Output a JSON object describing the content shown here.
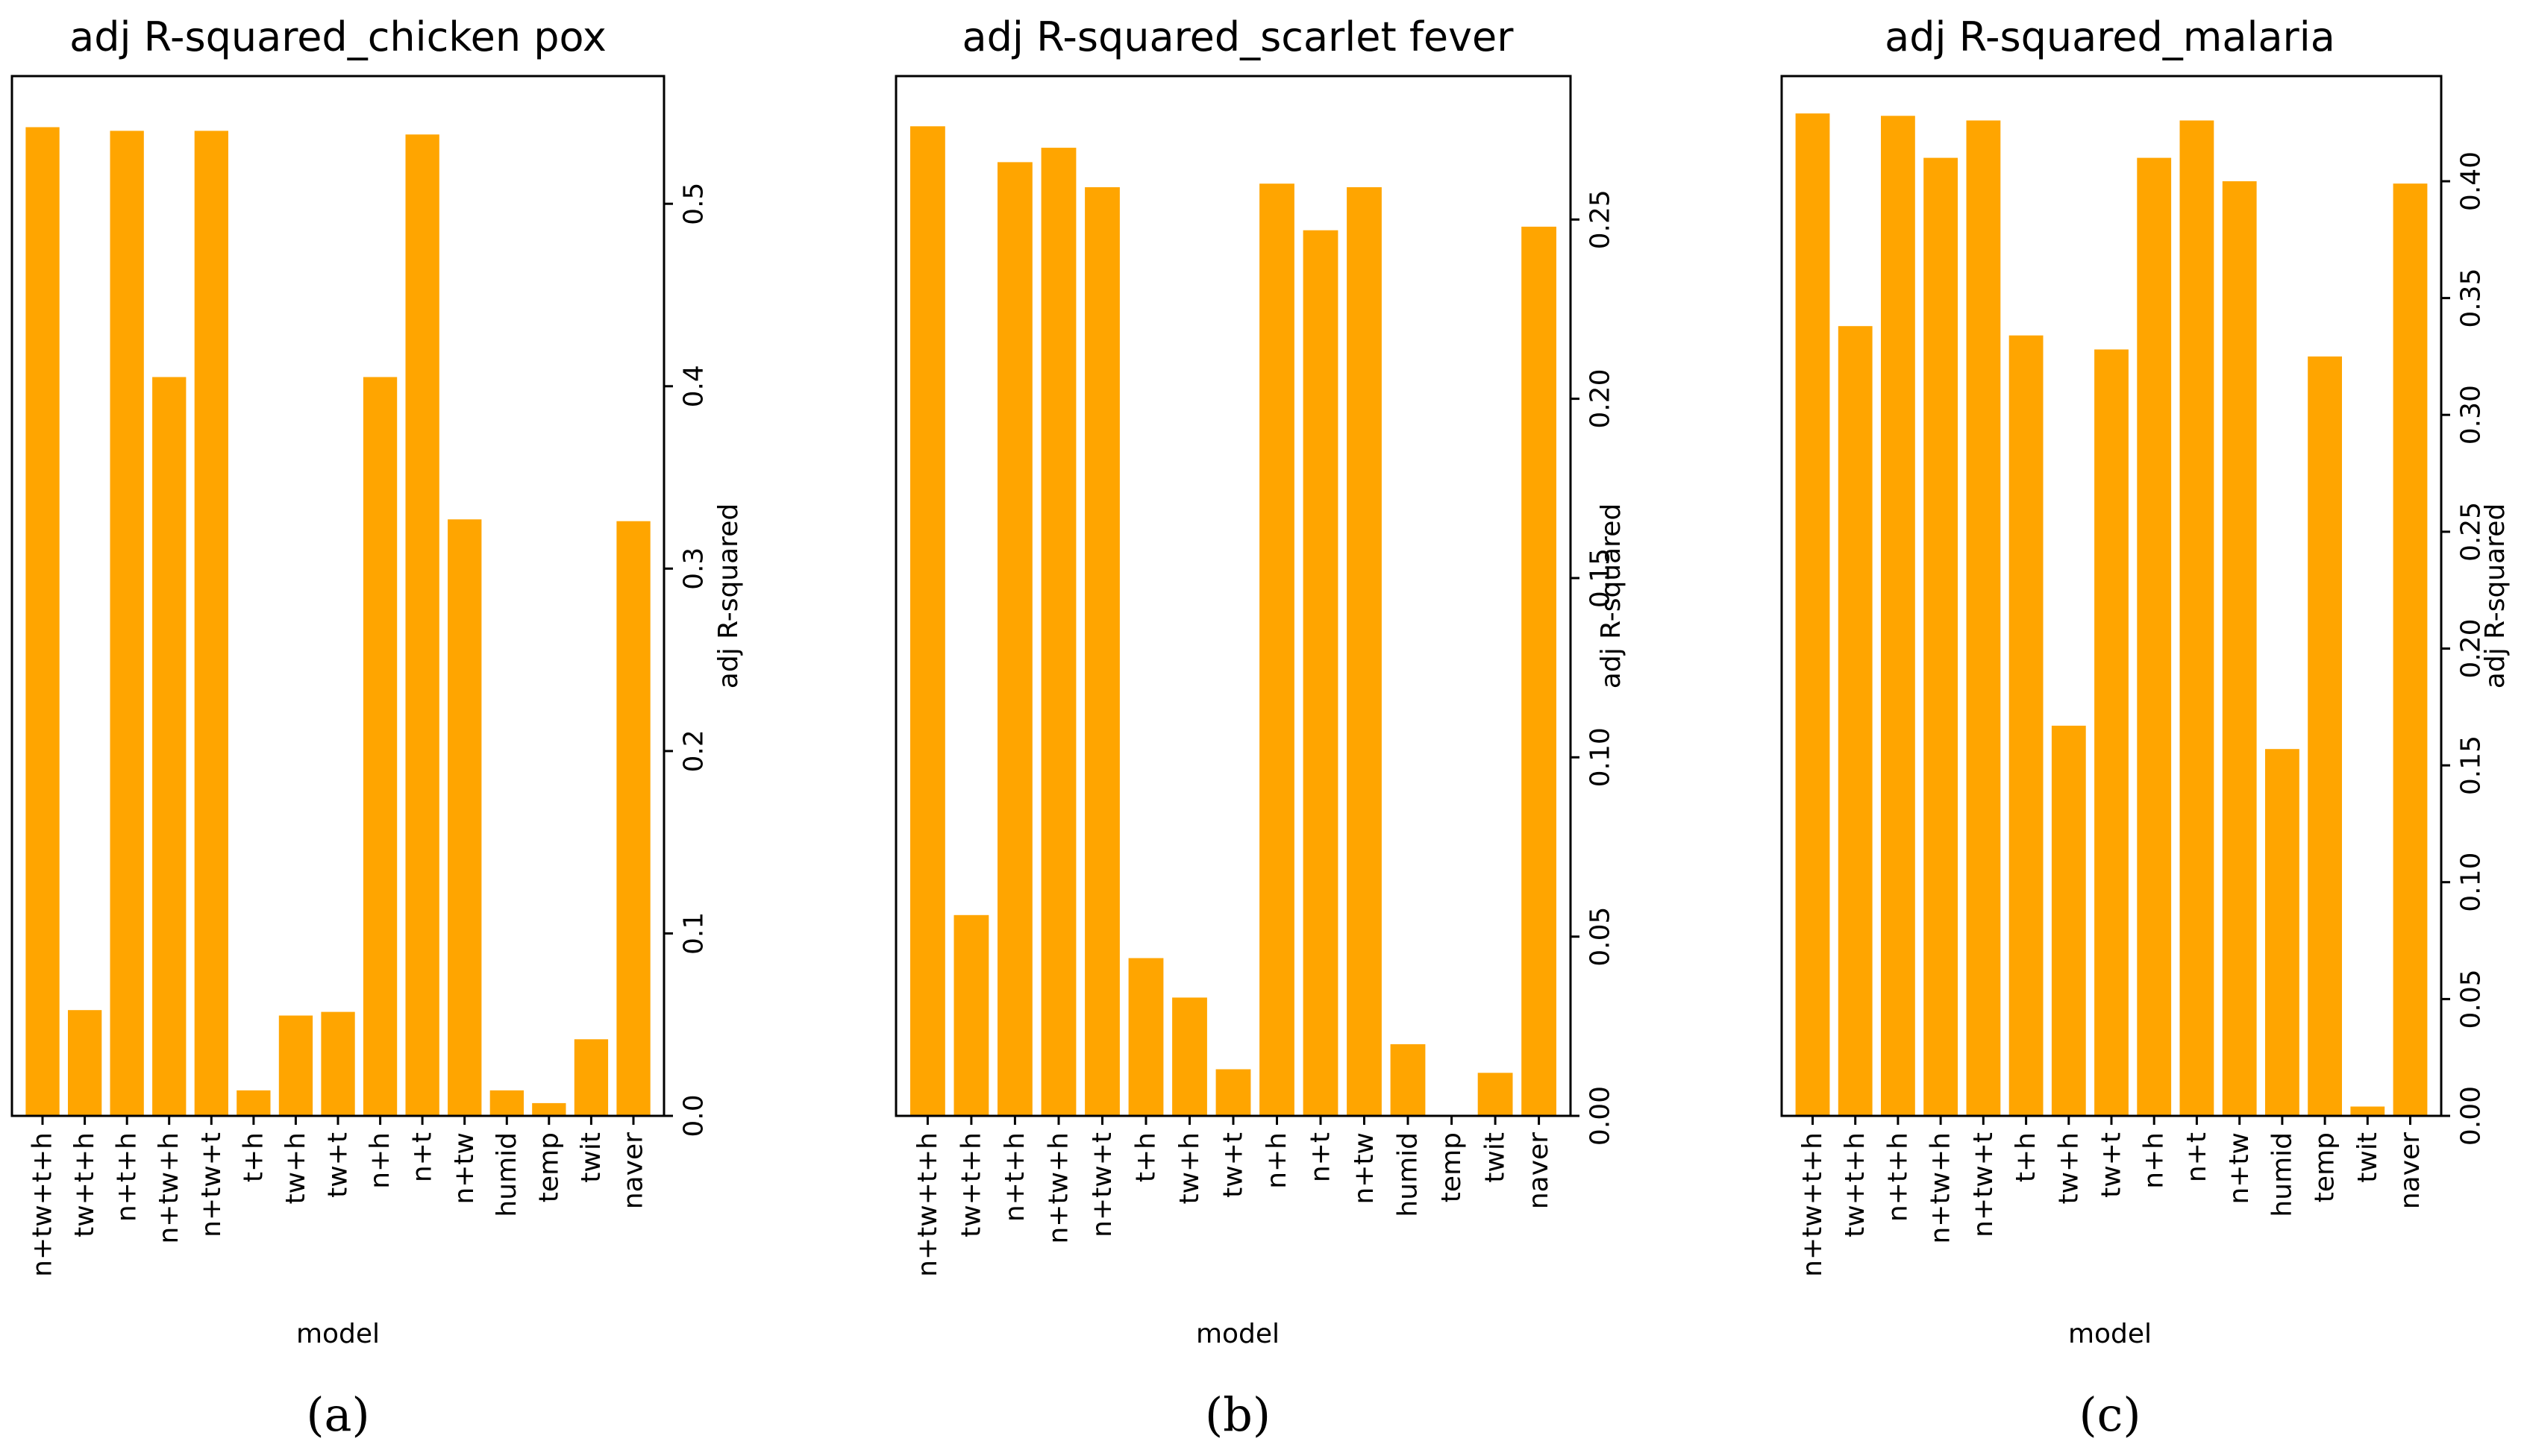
{
  "figure": {
    "bar_color": "#FFA500",
    "axis_color": "#000000"
  },
  "chart_data": [
    {
      "type": "bar",
      "panel_label": "(a)",
      "title": "adj R-squared_chicken pox",
      "xlabel": "model",
      "ylabel": "adj R-squared",
      "yaxis_side": "right",
      "ylim": [
        0,
        0.57
      ],
      "yticks": [
        0.0,
        0.1,
        0.2,
        0.3,
        0.4,
        0.5
      ],
      "ytick_labels": [
        "0.0",
        "0.1",
        "0.2",
        "0.3",
        "0.4",
        "0.5"
      ],
      "categories": [
        "n+tw+t+h",
        "tw+t+h",
        "n+t+h",
        "n+tw+h",
        "n+tw+t",
        "t+h",
        "tw+h",
        "tw+t",
        "n+h",
        "n+t",
        "n+tw",
        "humid",
        "temp",
        "twit",
        "naver"
      ],
      "values": [
        0.542,
        0.058,
        0.54,
        0.405,
        0.54,
        0.014,
        0.055,
        0.057,
        0.405,
        0.538,
        0.327,
        0.014,
        0.007,
        0.042,
        0.326
      ]
    },
    {
      "type": "bar",
      "panel_label": "(b)",
      "title": "adj R-squared_scarlet fever",
      "xlabel": "model",
      "ylabel": "adj R-squared",
      "yaxis_side": "right",
      "ylim": [
        0,
        0.29
      ],
      "yticks": [
        0.0,
        0.05,
        0.1,
        0.15,
        0.2,
        0.25
      ],
      "ytick_labels": [
        "0.00",
        "0.05",
        "0.10",
        "0.15",
        "0.20",
        "0.25"
      ],
      "categories": [
        "n+tw+t+h",
        "tw+t+h",
        "n+t+h",
        "n+tw+h",
        "n+tw+t",
        "t+h",
        "tw+h",
        "tw+t",
        "n+h",
        "n+t",
        "n+tw",
        "humid",
        "temp",
        "twit",
        "naver"
      ],
      "values": [
        0.276,
        0.056,
        0.266,
        0.27,
        0.259,
        0.044,
        0.033,
        0.013,
        0.26,
        0.247,
        0.259,
        0.02,
        0.0,
        0.012,
        0.248
      ]
    },
    {
      "type": "bar",
      "panel_label": "(c)",
      "title": "adj R-squared_malaria",
      "xlabel": "model",
      "ylabel": "adj R-squared",
      "yaxis_side": "right",
      "ylim": [
        0,
        0.445
      ],
      "yticks": [
        0.0,
        0.05,
        0.1,
        0.15,
        0.2,
        0.25,
        0.3,
        0.35,
        0.4
      ],
      "ytick_labels": [
        "0.00",
        "0.05",
        "0.10",
        "0.15",
        "0.20",
        "0.25",
        "0.30",
        "0.35",
        "0.40"
      ],
      "categories": [
        "n+tw+t+h",
        "tw+t+h",
        "n+t+h",
        "n+tw+h",
        "n+tw+t",
        "t+h",
        "tw+h",
        "tw+t",
        "n+h",
        "n+t",
        "n+tw",
        "humid",
        "temp",
        "twit",
        "naver"
      ],
      "values": [
        0.429,
        0.338,
        0.428,
        0.41,
        0.426,
        0.334,
        0.167,
        0.328,
        0.41,
        0.426,
        0.4,
        0.157,
        0.325,
        0.004,
        0.399
      ]
    }
  ]
}
